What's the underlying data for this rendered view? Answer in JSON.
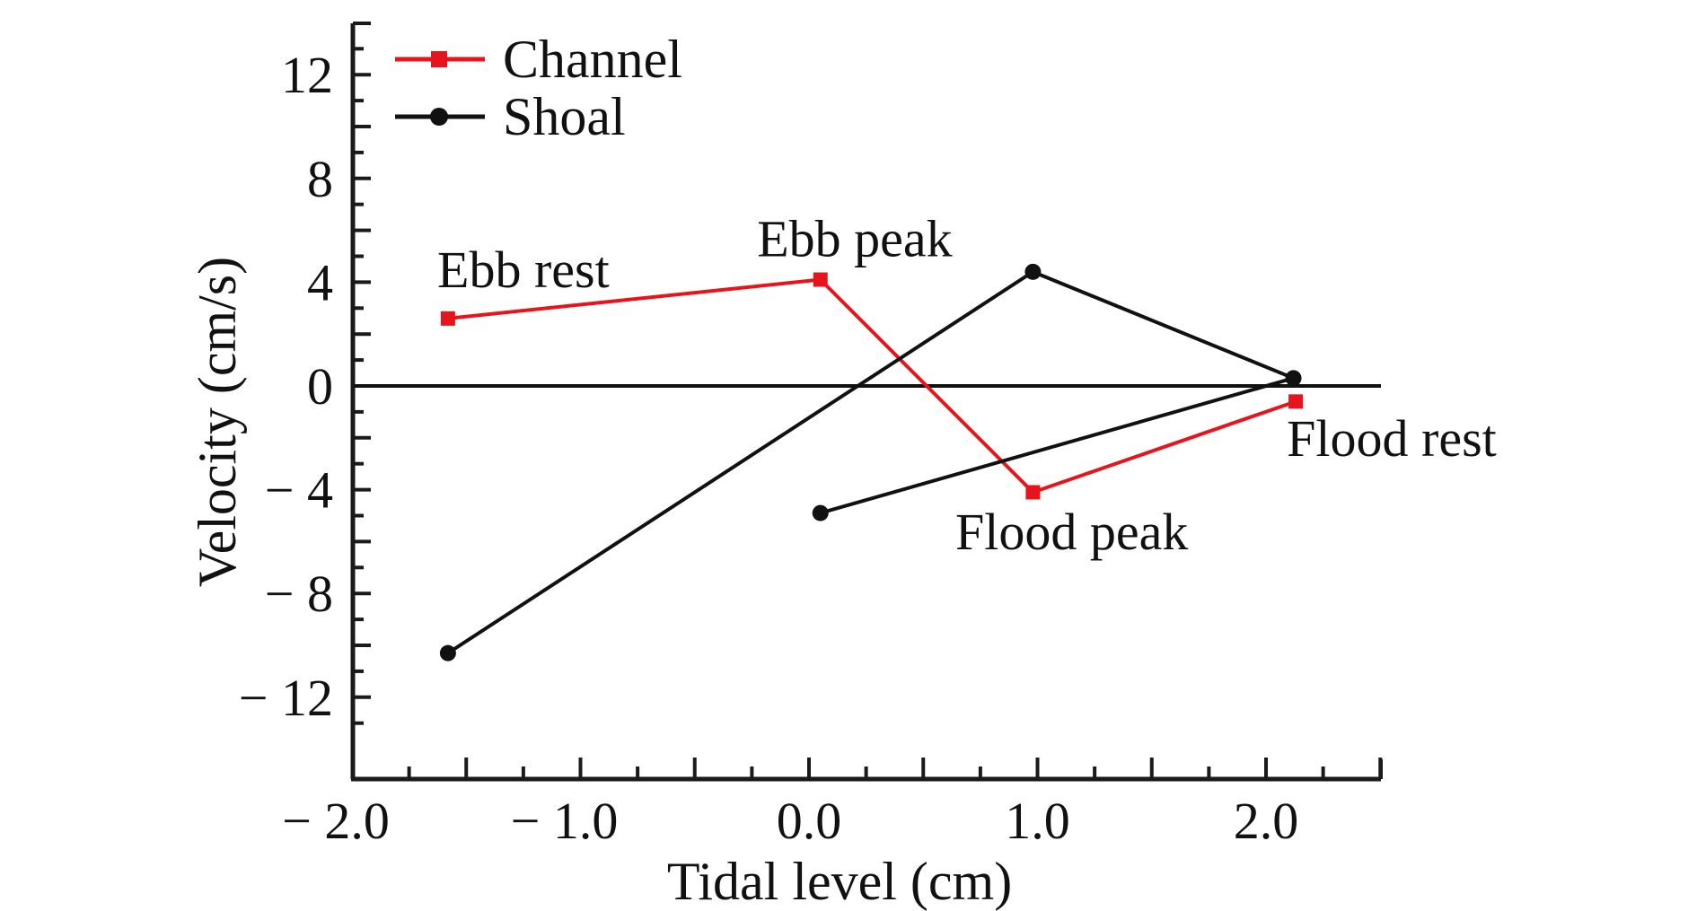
{
  "chart_data": {
    "type": "line",
    "title": "",
    "xlabel": "Tidal level (cm)",
    "ylabel": "Velocity (cm/s)",
    "xlim": [
      -2.0,
      2.5
    ],
    "ylim": [
      -14,
      14
    ],
    "x_ticks": [
      -2.0,
      -1.0,
      0.0,
      1.0,
      2.0
    ],
    "x_tick_labels": [
      "− 2.0",
      "− 1.0",
      "0.0",
      "1.0",
      "2.0"
    ],
    "x_minor_step": 0.25,
    "y_ticks": [
      12,
      8,
      4,
      0,
      -4,
      -8,
      -12
    ],
    "y_tick_labels": [
      "12",
      "8",
      "4",
      "0",
      "− 4",
      "− 8",
      "− 12"
    ],
    "y_minor_step": 1,
    "grid": false,
    "zero_line": true,
    "legend": {
      "position": "top-left",
      "entries": [
        "Channel",
        "Shoal"
      ]
    },
    "series": [
      {
        "name": "Channel",
        "color": "#e8141c",
        "marker": "square",
        "points": [
          {
            "x": -1.58,
            "y": 2.6
          },
          {
            "x": 0.05,
            "y": 4.1
          },
          {
            "x": 0.98,
            "y": -4.1
          },
          {
            "x": 2.13,
            "y": -0.6
          }
        ]
      },
      {
        "name": "Shoal",
        "color": "#111111",
        "marker": "circle",
        "points": [
          {
            "x": -1.58,
            "y": -10.3
          },
          {
            "x": 0.98,
            "y": 4.4
          },
          {
            "x": 2.12,
            "y": 0.3
          },
          {
            "x": 0.05,
            "y": -4.9
          }
        ]
      }
    ],
    "annotations": [
      {
        "text": "Ebb rest",
        "x": -1.25,
        "y": 3.8
      },
      {
        "text": "Ebb peak",
        "x": 0.2,
        "y": 5.0
      },
      {
        "text": "Flood rest",
        "x": 2.55,
        "y": -2.7
      },
      {
        "text": "Flood peak",
        "x": 1.15,
        "y": -6.3
      }
    ]
  }
}
